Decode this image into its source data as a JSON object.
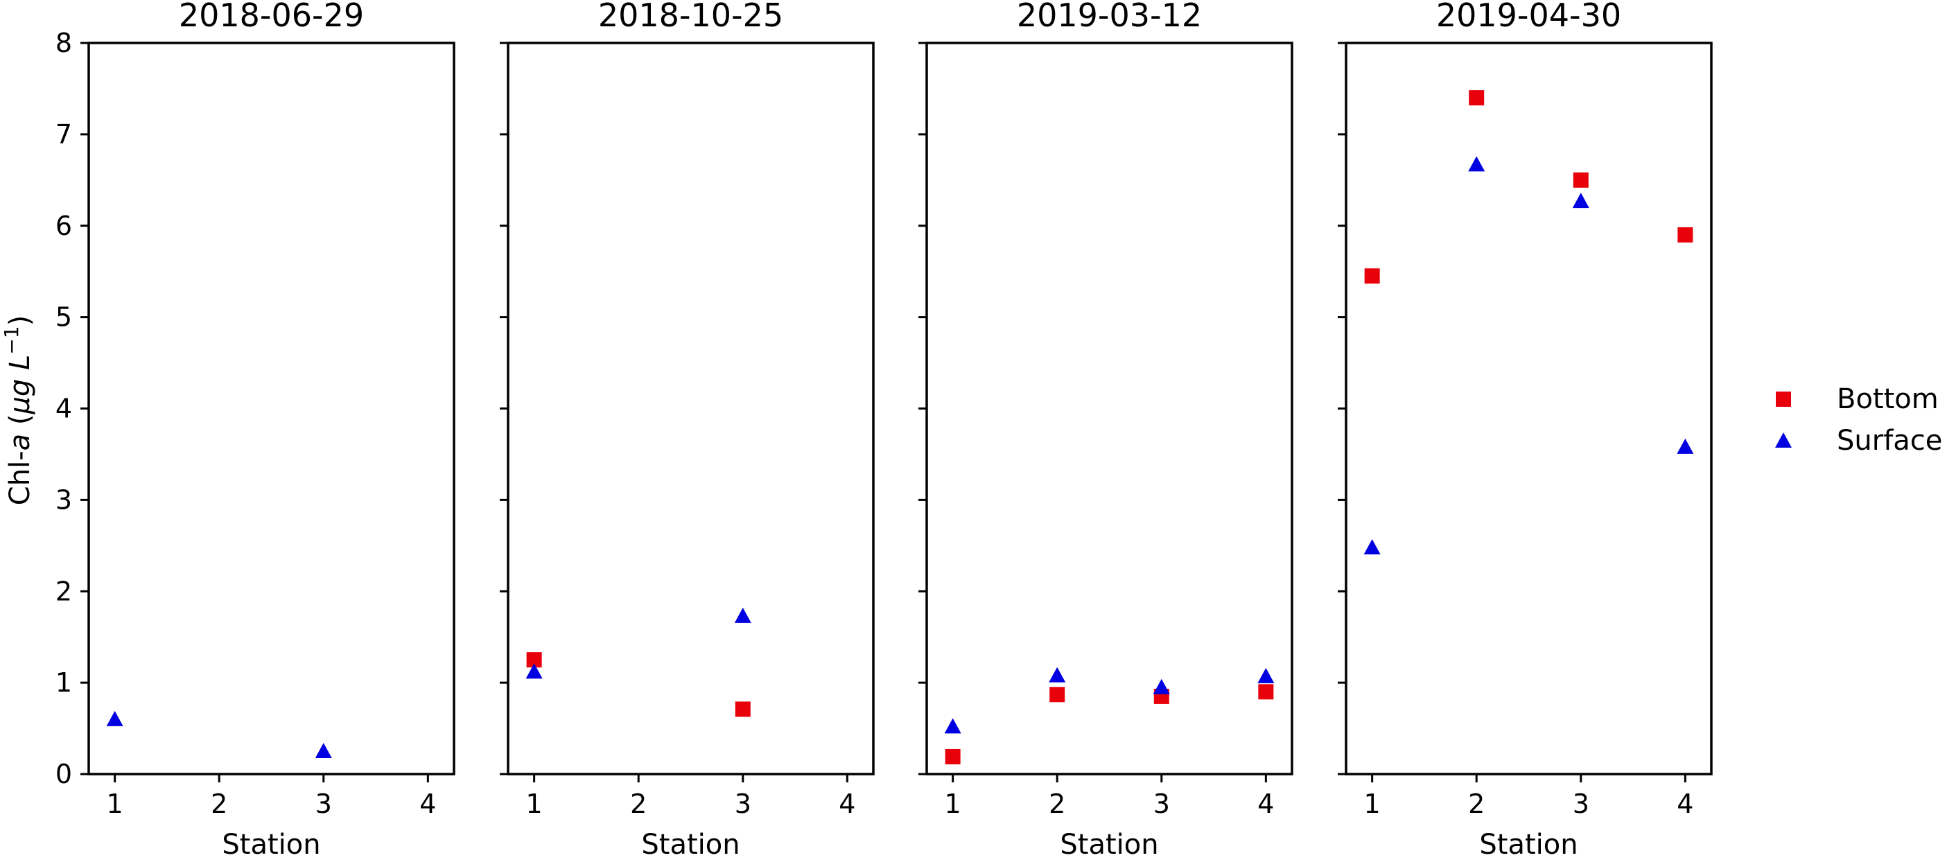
{
  "chart_data": {
    "type": "scatter",
    "ylabel_text": "Chl-",
    "ylabel_italic": "a",
    "ylabel_unit_open": " (",
    "ylabel_mu": "μg",
    "ylabel_L": "L",
    "ylabel_exp": "−1",
    "ylabel_close": ")",
    "ylim": [
      0,
      8
    ],
    "yticks": [
      0,
      1,
      2,
      3,
      4,
      5,
      6,
      7,
      8
    ],
    "xlim": [
      0.75,
      4.25
    ],
    "xticks": [
      1,
      2,
      3,
      4
    ],
    "legend_placement": "right",
    "grid": false,
    "legend": [
      {
        "name": "Bottom",
        "marker": "square",
        "color": "#e8000b"
      },
      {
        "name": "Surface",
        "marker": "triangle",
        "color": "#0000e0"
      }
    ],
    "panels": [
      {
        "title": "2018-06-29",
        "xlabel": "Station",
        "series": [
          {
            "name": "Bottom",
            "points": []
          },
          {
            "name": "Surface",
            "points": [
              [
                1,
                0.6
              ],
              [
                3,
                0.25
              ]
            ]
          }
        ]
      },
      {
        "title": "2018-10-25",
        "xlabel": "Station",
        "series": [
          {
            "name": "Bottom",
            "points": [
              [
                1,
                1.25
              ],
              [
                3,
                0.71
              ]
            ]
          },
          {
            "name": "Surface",
            "points": [
              [
                1,
                1.12
              ],
              [
                3,
                1.73
              ]
            ]
          }
        ]
      },
      {
        "title": "2019-03-12",
        "xlabel": "Station",
        "series": [
          {
            "name": "Bottom",
            "points": [
              [
                1,
                0.19
              ],
              [
                2,
                0.87
              ],
              [
                3,
                0.85
              ],
              [
                4,
                0.9
              ]
            ]
          },
          {
            "name": "Surface",
            "points": [
              [
                1,
                0.52
              ],
              [
                2,
                1.08
              ],
              [
                3,
                0.95
              ],
              [
                4,
                1.07
              ]
            ]
          }
        ]
      },
      {
        "title": "2019-04-30",
        "xlabel": "Station",
        "series": [
          {
            "name": "Bottom",
            "points": [
              [
                1,
                5.45
              ],
              [
                2,
                7.4
              ],
              [
                3,
                6.5
              ],
              [
                4,
                5.9
              ]
            ]
          },
          {
            "name": "Surface",
            "points": [
              [
                1,
                2.48
              ],
              [
                2,
                6.67
              ],
              [
                3,
                6.27
              ],
              [
                4,
                3.58
              ]
            ]
          }
        ]
      }
    ]
  }
}
